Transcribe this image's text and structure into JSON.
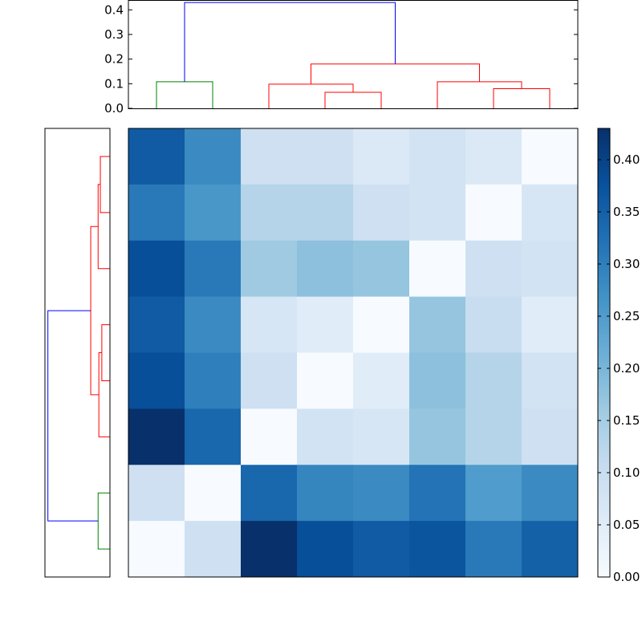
{
  "chart_data": {
    "type": "heatmap",
    "title": "",
    "xlabel": "",
    "ylabel": "",
    "grid": false,
    "colormap": "Blues",
    "rows": 8,
    "cols": 8,
    "values": [
      [
        0.36,
        0.28,
        0.09,
        0.09,
        0.06,
        0.08,
        0.06,
        0.0
      ],
      [
        0.31,
        0.26,
        0.13,
        0.13,
        0.09,
        0.08,
        0.0,
        0.07
      ],
      [
        0.38,
        0.31,
        0.16,
        0.18,
        0.17,
        0.0,
        0.09,
        0.08
      ],
      [
        0.36,
        0.28,
        0.07,
        0.05,
        0.0,
        0.17,
        0.1,
        0.05
      ],
      [
        0.38,
        0.3,
        0.09,
        0.0,
        0.05,
        0.18,
        0.13,
        0.08
      ],
      [
        0.43,
        0.34,
        0.0,
        0.08,
        0.07,
        0.17,
        0.13,
        0.09
      ],
      [
        0.09,
        0.0,
        0.34,
        0.29,
        0.28,
        0.32,
        0.25,
        0.28
      ],
      [
        0.0,
        0.09,
        0.43,
        0.38,
        0.36,
        0.37,
        0.31,
        0.35
      ]
    ],
    "colorbar": {
      "range": [
        0.0,
        0.43
      ],
      "ticks": [
        "0.00",
        "0.05",
        "0.10",
        "0.15",
        "0.20",
        "0.25",
        "0.30",
        "0.35",
        "0.40"
      ]
    },
    "top_dendrogram": {
      "ylim": [
        0.0,
        0.44
      ],
      "ticks": [
        "0.0",
        "0.1",
        "0.2",
        "0.3",
        "0.4"
      ],
      "links": [
        {
          "x": [
            0.5,
            0.5,
            1.5,
            1.5
          ],
          "y": [
            0.0,
            0.108,
            0.108,
            0.0
          ],
          "color": "#008000"
        },
        {
          "x": [
            3.5,
            3.5,
            4.5,
            4.5
          ],
          "y": [
            0.0,
            0.065,
            0.065,
            0.0
          ],
          "color": "#ff0000"
        },
        {
          "x": [
            2.5,
            2.5,
            4.0,
            4.0
          ],
          "y": [
            0.0,
            0.098,
            0.098,
            0.065
          ],
          "color": "#ff0000"
        },
        {
          "x": [
            6.5,
            6.5,
            7.5,
            7.5
          ],
          "y": [
            0.0,
            0.08,
            0.08,
            0.0
          ],
          "color": "#ff0000"
        },
        {
          "x": [
            5.5,
            5.5,
            7.0,
            7.0
          ],
          "y": [
            0.0,
            0.108,
            0.108,
            0.08
          ],
          "color": "#ff0000"
        },
        {
          "x": [
            3.25,
            3.25,
            6.25,
            6.25
          ],
          "y": [
            0.098,
            0.18,
            0.18,
            0.108
          ],
          "color": "#ff0000"
        },
        {
          "x": [
            1.0,
            1.0,
            4.75,
            4.75
          ],
          "y": [
            0.108,
            0.43,
            0.43,
            0.18
          ],
          "color": "#0000ff"
        }
      ]
    },
    "left_dendrogram": {
      "xlim": [
        0.0,
        0.44
      ],
      "links": [
        {
          "y": [
            0.5,
            0.5,
            1.5,
            1.5
          ],
          "d": [
            0.0,
            0.065,
            0.065,
            0.0
          ],
          "color": "#ff0000"
        },
        {
          "y": [
            1.0,
            1.0,
            2.5,
            2.5
          ],
          "d": [
            0.065,
            0.08,
            0.08,
            0.0
          ],
          "color": "#ff0000"
        },
        {
          "y": [
            3.5,
            3.5,
            4.5,
            4.5
          ],
          "d": [
            0.0,
            0.055,
            0.055,
            0.0
          ],
          "color": "#ff0000"
        },
        {
          "y": [
            4.0,
            4.0,
            5.5,
            5.5
          ],
          "d": [
            0.055,
            0.075,
            0.075,
            0.0
          ],
          "color": "#ff0000"
        },
        {
          "y": [
            1.75,
            1.75,
            4.75,
            4.75
          ],
          "d": [
            0.08,
            0.13,
            0.13,
            0.075
          ],
          "color": "#ff0000"
        },
        {
          "y": [
            6.5,
            6.5,
            7.5,
            7.5
          ],
          "d": [
            0.0,
            0.08,
            0.08,
            0.0
          ],
          "color": "#008000"
        },
        {
          "y": [
            3.25,
            3.25,
            7.0,
            7.0
          ],
          "d": [
            0.13,
            0.42,
            0.42,
            0.08
          ],
          "color": "#0000ff"
        }
      ]
    }
  }
}
